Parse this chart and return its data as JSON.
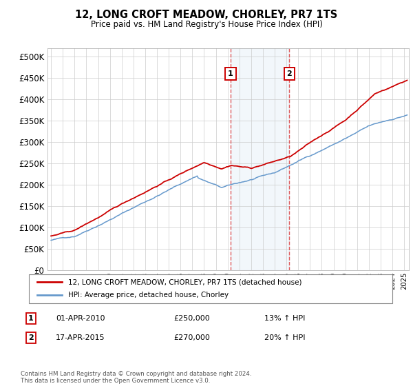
{
  "title": "12, LONG CROFT MEADOW, CHORLEY, PR7 1TS",
  "subtitle": "Price paid vs. HM Land Registry's House Price Index (HPI)",
  "legend_line1": "12, LONG CROFT MEADOW, CHORLEY, PR7 1TS (detached house)",
  "legend_line2": "HPI: Average price, detached house, Chorley",
  "transaction1_label": "1",
  "transaction1_date": "01-APR-2010",
  "transaction1_price": "£250,000",
  "transaction1_hpi": "13% ↑ HPI",
  "transaction2_label": "2",
  "transaction2_date": "17-APR-2015",
  "transaction2_price": "£270,000",
  "transaction2_hpi": "20% ↑ HPI",
  "footer": "Contains HM Land Registry data © Crown copyright and database right 2024.\nThis data is licensed under the Open Government Licence v3.0.",
  "red_line_color": "#cc0000",
  "blue_line_color": "#6699cc",
  "shaded_region_color": "#cce0f0",
  "vline_color": "#dd4444",
  "yticks": [
    0,
    50000,
    100000,
    150000,
    200000,
    250000,
    300000,
    350000,
    400000,
    450000,
    500000
  ],
  "ylim": [
    0,
    520000
  ],
  "xlim_min": 1994.7,
  "xlim_max": 2025.4,
  "background_color": "#ffffff"
}
